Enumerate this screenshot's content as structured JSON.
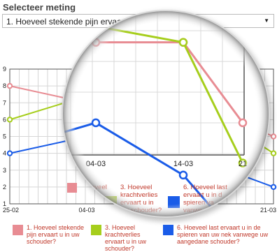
{
  "heading": "Selecteer meting",
  "select": {
    "value": "1. Hoeveel stekende pijn ervaart u in uw schouder?",
    "arrow_icon": "triangle-down"
  },
  "chart_data": {
    "type": "line",
    "x": [
      "25-02",
      "04-03",
      "14-03",
      "21-03"
    ],
    "x_tick_labels": [
      "25-02",
      "04-03",
      "21-03"
    ],
    "y_ticks": [
      1,
      2,
      3,
      4,
      5,
      6,
      7,
      8,
      9
    ],
    "ylim": [
      1,
      9
    ],
    "grid": true,
    "series": [
      {
        "name": "1. Hoeveel stekende pijn ervaart u in uw schouder?",
        "color": "#e88c93",
        "values": [
          8,
          7,
          7,
          5
        ]
      },
      {
        "name": "3. Hoeveel krachtverlies ervaart u in uw schouder?",
        "color": "#a6ce1c",
        "values": [
          6,
          7.4,
          7.0,
          4
        ]
      },
      {
        "name": "6. Hoeveel last ervaart u in de spieren van uw nek vanwege uw aangedane schouder?",
        "color": "#1a5ce8",
        "values": [
          4,
          5,
          3.7,
          2
        ]
      }
    ]
  },
  "legend_labels": [
    "1. Hoeveel stekende pijn ervaart u in uw schouder?",
    "3. Hoeveel krachtverlies ervaart u in uw schouder?",
    "6. Hoeveel last ervaart u in de spieren van uw nek vanwege uw aangedane schouder?"
  ],
  "magnifier": {
    "x_tick_labels": [
      "04-03",
      "14-03",
      "21"
    ],
    "legend_fragments": [
      "Hoeveel",
      "pijn",
      "t u in",
      "houder?",
      "3. Hoeveel",
      "krachtverlies",
      "ervaart u in",
      "uw schouder?",
      "6. Hoeveel last",
      "ervaart u in d",
      "spieren va",
      "vanwe",
      "aan"
    ]
  }
}
